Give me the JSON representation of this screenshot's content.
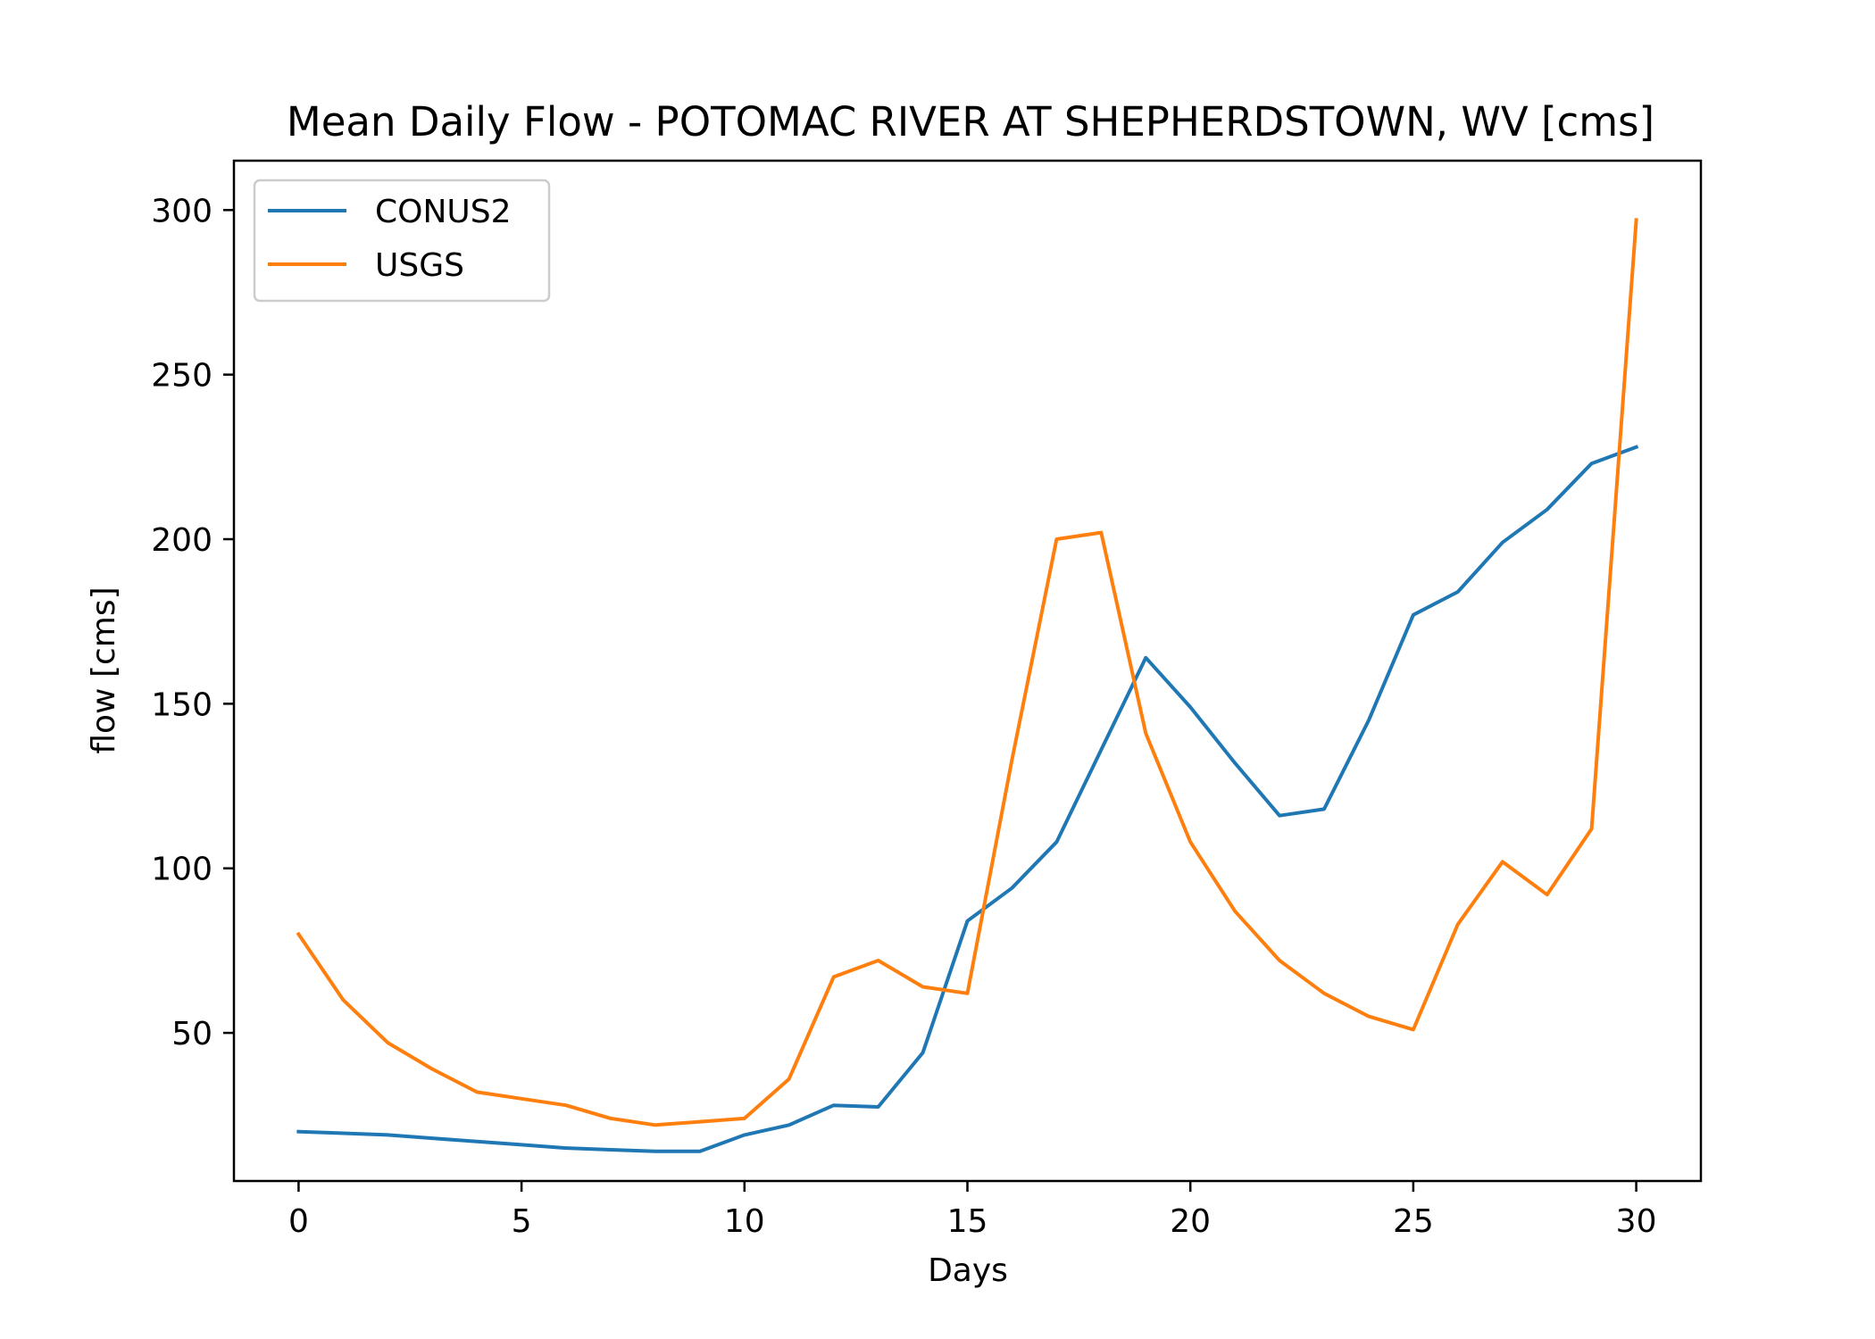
{
  "chart_data": {
    "type": "line",
    "title": "Mean Daily Flow - POTOMAC RIVER AT SHEPHERDSTOWN, WV [cms]",
    "xlabel": "Days",
    "ylabel": "flow [cms]",
    "xlim": [
      -1.45,
      31.45
    ],
    "ylim": [
      5,
      315
    ],
    "xticks": [
      0,
      5,
      10,
      15,
      20,
      25,
      30
    ],
    "yticks": [
      50,
      100,
      150,
      200,
      250,
      300
    ],
    "grid": false,
    "legend_position": "top-left",
    "x": [
      0,
      1,
      2,
      3,
      4,
      5,
      6,
      7,
      8,
      9,
      10,
      11,
      12,
      13,
      14,
      15,
      16,
      17,
      18,
      19,
      20,
      21,
      22,
      23,
      24,
      25,
      26,
      27,
      28,
      29,
      30
    ],
    "series": [
      {
        "name": "CONUS2",
        "color": "#1f77b4",
        "values": [
          20,
          19.5,
          19,
          18,
          17,
          16,
          15,
          14.5,
          14,
          14,
          19,
          22,
          28,
          27.5,
          44,
          84,
          94,
          108,
          136,
          164,
          149,
          132,
          116,
          118,
          145,
          177,
          184,
          199,
          209,
          223,
          228
        ]
      },
      {
        "name": "USGS",
        "color": "#ff7f0e",
        "values": [
          80,
          60,
          47,
          39,
          32,
          30,
          28,
          24,
          22,
          23,
          24,
          36,
          67,
          72,
          64,
          62,
          133,
          200,
          202,
          141,
          108,
          87,
          72,
          62,
          55,
          51,
          83,
          102,
          92,
          112,
          297
        ]
      }
    ]
  }
}
